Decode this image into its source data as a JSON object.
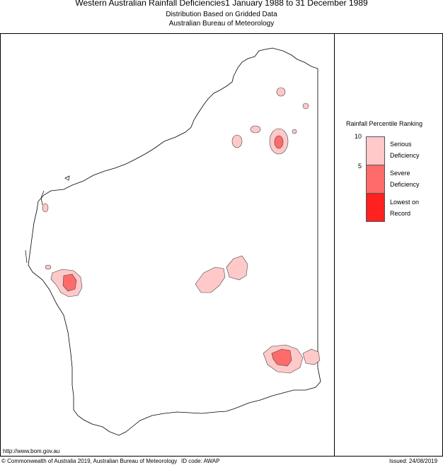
{
  "header": {
    "title": "Western Australian Rainfall Deficiencies1 January 1988 to 31 December 1989",
    "subtitle1": "Distribution Based on Gridded Data",
    "subtitle2": "Australian Bureau of Meteorology"
  },
  "legend": {
    "title": "Rainfall Percentile Ranking",
    "ticks": [
      "10",
      "5"
    ],
    "classes": [
      {
        "line1": "Serious",
        "line2": "Deficiency",
        "color": "#ffc9c9"
      },
      {
        "line1": "Severe",
        "line2": "Deficiency",
        "color": "#ff6b6b"
      },
      {
        "line1": "Lowest on",
        "line2": "Record",
        "color": "#ff2020"
      }
    ]
  },
  "footer": {
    "url": "http://www.bom.gov.au",
    "copyright": "© Commonwealth of Australia 2019, Australian Bureau of Meteorology",
    "id_code": "ID code: AWAP",
    "issued": "Issued: 24/08/2019"
  },
  "colors": {
    "coast": "#000000",
    "serious": "#ffc9c9",
    "severe": "#ff6b6b",
    "lowest": "#ff2020"
  }
}
